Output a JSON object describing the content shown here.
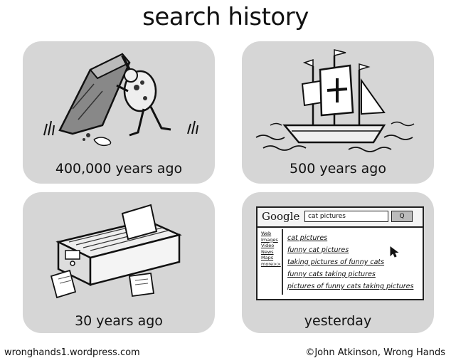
{
  "title": "search history",
  "panels": [
    {
      "caption": "400,000 years ago"
    },
    {
      "caption": "500 years ago"
    },
    {
      "caption": "30 years ago"
    },
    {
      "caption": "yesterday"
    }
  ],
  "google": {
    "logo": "Google",
    "query": "cat pictures",
    "button": "Q",
    "sidebar": [
      "Web",
      "Images",
      "Video",
      "News",
      "Maps",
      "more>>"
    ],
    "results": [
      "cat pictures",
      "funny cat pictures",
      "taking pictures of funny cats",
      "funny cats taking pictures",
      "pictures of funny cats taking pictures"
    ]
  },
  "footer": {
    "left": "wronghands1.wordpress.com",
    "right": "©John Atkinson, Wrong Hands"
  }
}
